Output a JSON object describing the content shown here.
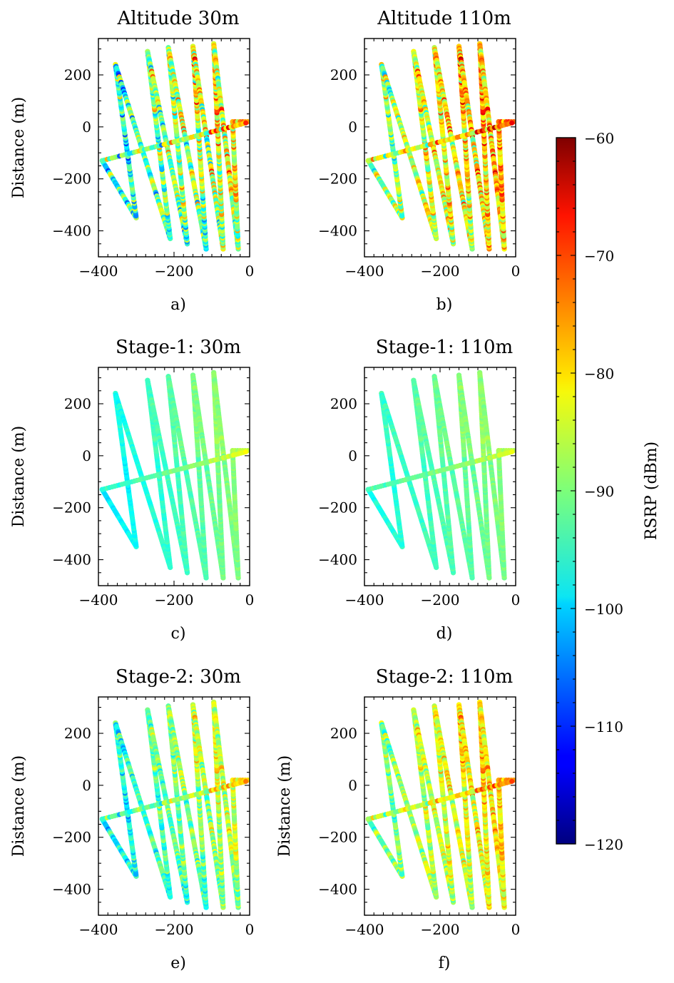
{
  "chart_data": {
    "type": "scatter",
    "x_range": [
      -400,
      0
    ],
    "y_range": [
      -500,
      340
    ],
    "x_ticks": [
      -400,
      -200,
      0
    ],
    "x_tick_labels": [
      "−400",
      "−200",
      "0"
    ],
    "y_ticks": [
      200,
      0,
      -200,
      -400
    ],
    "y_tick_labels": [
      "200",
      "0",
      "−200",
      "−400"
    ],
    "ylabel": "Distance (m)",
    "flight_path_vertices": [
      [
        -390,
        -130
      ],
      [
        -300,
        -350
      ],
      [
        -355,
        240
      ],
      [
        -210,
        -430
      ],
      [
        -270,
        290
      ],
      [
        -165,
        -450
      ],
      [
        -215,
        305
      ],
      [
        -115,
        -470
      ],
      [
        -150,
        310
      ],
      [
        -70,
        -470
      ],
      [
        -95,
        320
      ],
      [
        -30,
        -470
      ],
      [
        -45,
        20
      ],
      [
        -5,
        20
      ]
    ],
    "crossing_leg": {
      "from": [
        -390,
        -130
      ],
      "to": [
        -10,
        15
      ]
    },
    "panels": [
      {
        "title": "Altitude 30m",
        "label": "a)",
        "show_ylabel": true,
        "rsrp_profile": {
          "base": -90,
          "gradient_per_m": 0.045,
          "upper_shift": 3,
          "low_south_shift": -8,
          "noise": 7
        }
      },
      {
        "title": "Altitude 110m",
        "label": "b)",
        "show_ylabel": false,
        "rsrp_profile": {
          "base": -84,
          "gradient_per_m": 0.04,
          "upper_shift": 2,
          "low_south_shift": -5,
          "noise": 6
        }
      },
      {
        "title": "Stage-1: 30m",
        "label": "c)",
        "show_ylabel": true,
        "rsrp_profile": {
          "base": -94,
          "gradient_per_m": 0.028,
          "upper_shift": 2,
          "low_south_shift": -1,
          "noise": 1
        }
      },
      {
        "title": "Stage-1: 110m",
        "label": "d)",
        "show_ylabel": false,
        "rsrp_profile": {
          "base": -93,
          "gradient_per_m": 0.02,
          "upper_shift": 2,
          "low_south_shift": -1,
          "noise": 1
        }
      },
      {
        "title": "Stage-2: 30m",
        "label": "e)",
        "show_ylabel": true,
        "rsrp_profile": {
          "base": -92,
          "gradient_per_m": 0.04,
          "upper_shift": 3,
          "low_south_shift": -6,
          "noise": 4
        }
      },
      {
        "title": "Stage-2: 110m",
        "label": "f)",
        "show_ylabel": true,
        "rsrp_profile": {
          "base": -86,
          "gradient_per_m": 0.035,
          "upper_shift": 2,
          "low_south_shift": -4,
          "noise": 4
        }
      }
    ],
    "colorbar": {
      "label": "RSRP (dBm)",
      "min": -120,
      "max": -60,
      "ticks": [
        -60,
        -70,
        -80,
        -90,
        -100,
        -110,
        -120
      ],
      "tick_labels": [
        "−60",
        "−70",
        "−80",
        "−90",
        "−100",
        "−110",
        "−120"
      ],
      "colormap": "jet"
    }
  }
}
